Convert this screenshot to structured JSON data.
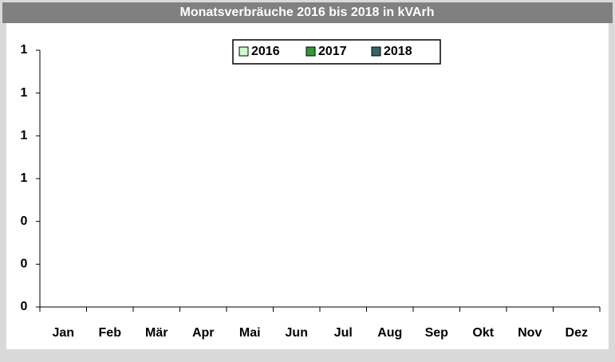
{
  "chart_data": {
    "type": "bar",
    "title": "Monatsverbräuche 2016 bis 2018 in kVArh",
    "categories": [
      "Jan",
      "Feb",
      "Mär",
      "Apr",
      "Mai",
      "Jun",
      "Jul",
      "Aug",
      "Sep",
      "Okt",
      "Nov",
      "Dez"
    ],
    "series": [
      {
        "name": "2016",
        "color": "#ccffcc",
        "values": [
          null,
          null,
          null,
          null,
          null,
          null,
          null,
          null,
          null,
          null,
          null,
          null
        ]
      },
      {
        "name": "2017",
        "color": "#339933",
        "values": [
          null,
          null,
          null,
          null,
          null,
          null,
          null,
          null,
          null,
          null,
          null,
          null
        ]
      },
      {
        "name": "2018",
        "color": "#336666",
        "values": [
          null,
          null,
          null,
          null,
          null,
          null,
          null,
          null,
          null,
          null,
          null,
          null
        ]
      }
    ],
    "ylim": [
      0,
      1.2
    ],
    "yticks": [
      0,
      {
        "value": 0.2,
        "label": "0"
      },
      {
        "value": 0.4,
        "label": "0"
      },
      {
        "value": 0.6,
        "label": "1"
      },
      {
        "value": 0.8,
        "label": "1"
      },
      1,
      {
        "value": 1.2,
        "label": "1"
      }
    ],
    "grid": false,
    "legend": "top"
  }
}
